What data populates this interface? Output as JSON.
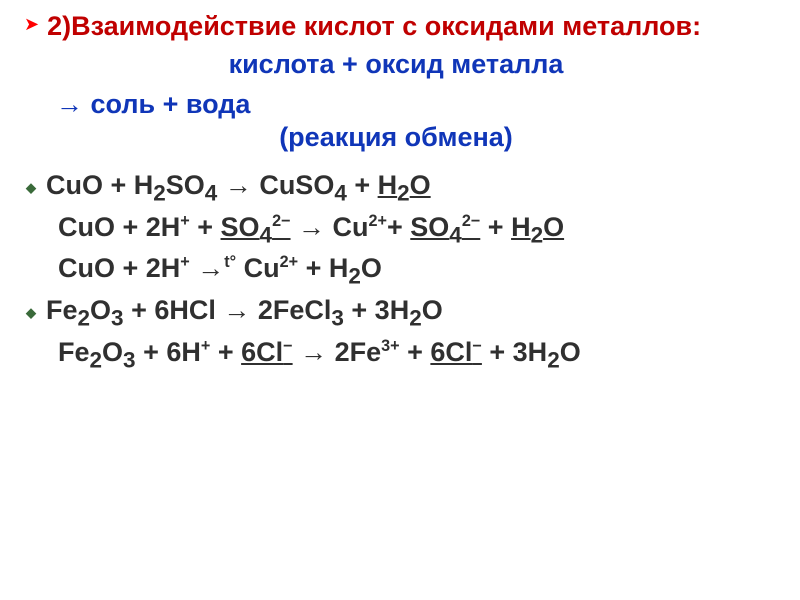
{
  "heading": "2)Взаимодействие кислот с оксидами металлов:",
  "scheme_line1": "кислота + оксид металла",
  "scheme_line2_prefix": "→ ",
  "scheme_line2_rest": "соль + вода",
  "reaction_type": "(реакция обмена)",
  "colors": {
    "heading": "#c00000",
    "scheme": "#1036b8",
    "equation": "#303030",
    "underline": "#303030",
    "bullet": "#3a6a3a",
    "arrow": "#ff0000",
    "background": "#ffffff"
  },
  "fonts": {
    "main_family": "Comic Sans MS",
    "main_size_pt": 20,
    "bold": true
  },
  "equations": [
    {
      "bulleted": true,
      "parts": [
        {
          "t": "CuO + H"
        },
        {
          "t": "2",
          "sub": true
        },
        {
          "t": "SO"
        },
        {
          "t": "4",
          "sub": true
        },
        {
          "t": " → CuSO"
        },
        {
          "t": "4",
          "sub": true
        },
        {
          "t": " + "
        },
        {
          "t": "H",
          "u": true
        },
        {
          "t": "2",
          "sub": true,
          "u": true
        },
        {
          "t": "O",
          "u": true
        }
      ]
    },
    {
      "bulleted": false,
      "indent": true,
      "parts": [
        {
          "t": "CuO + 2H"
        },
        {
          "t": "+",
          "sup": true
        },
        {
          "t": " + "
        },
        {
          "t": "SO",
          "u": true
        },
        {
          "t": "4",
          "sub": true,
          "u": true
        },
        {
          "t": "2−",
          "sup": true,
          "u": true
        },
        {
          "t": " → Cu"
        },
        {
          "t": "2+",
          "sup": true
        },
        {
          "t": "+ "
        },
        {
          "t": "SO",
          "u": true
        },
        {
          "t": "4",
          "sub": true,
          "u": true
        },
        {
          "t": "2−",
          "sup": true,
          "u": true
        },
        {
          "t": " + "
        },
        {
          "t": "H",
          "u": true
        },
        {
          "t": "2",
          "sub": true,
          "u": true
        },
        {
          "t": "O",
          "u": true
        }
      ]
    },
    {
      "bulleted": false,
      "indent": true,
      "parts": [
        {
          "t": "CuO + 2H"
        },
        {
          "t": "+",
          "sup": true
        },
        {
          "t": " →"
        },
        {
          "t": "t°",
          "sup": true
        },
        {
          "t": " Cu"
        },
        {
          "t": "2+",
          "sup": true
        },
        {
          "t": " + H"
        },
        {
          "t": "2",
          "sub": true
        },
        {
          "t": "O"
        }
      ]
    },
    {
      "bulleted": true,
      "parts": [
        {
          "t": "Fe"
        },
        {
          "t": "2",
          "sub": true
        },
        {
          "t": "O"
        },
        {
          "t": "3",
          "sub": true
        },
        {
          "t": " + 6HCl → 2FeCl"
        },
        {
          "t": "3",
          "sub": true
        },
        {
          "t": " + 3H"
        },
        {
          "t": "2",
          "sub": true
        },
        {
          "t": "O"
        }
      ]
    },
    {
      "bulleted": false,
      "indent": true,
      "parts": [
        {
          "t": "Fe"
        },
        {
          "t": "2",
          "sub": true
        },
        {
          "t": "O"
        },
        {
          "t": "3",
          "sub": true
        },
        {
          "t": " + 6H"
        },
        {
          "t": "+",
          "sup": true
        },
        {
          "t": " + "
        },
        {
          "t": "6Cl",
          "u": true
        },
        {
          "t": "−",
          "sup": true,
          "u": true
        },
        {
          "t": " → 2Fe"
        },
        {
          "t": "3+",
          "sup": true
        },
        {
          "t": " + "
        },
        {
          "t": "6Cl",
          "u": true
        },
        {
          "t": "−",
          "sup": true,
          "u": true
        },
        {
          "t": " + 3H"
        },
        {
          "t": "2",
          "sub": true
        },
        {
          "t": "O"
        }
      ]
    }
  ]
}
